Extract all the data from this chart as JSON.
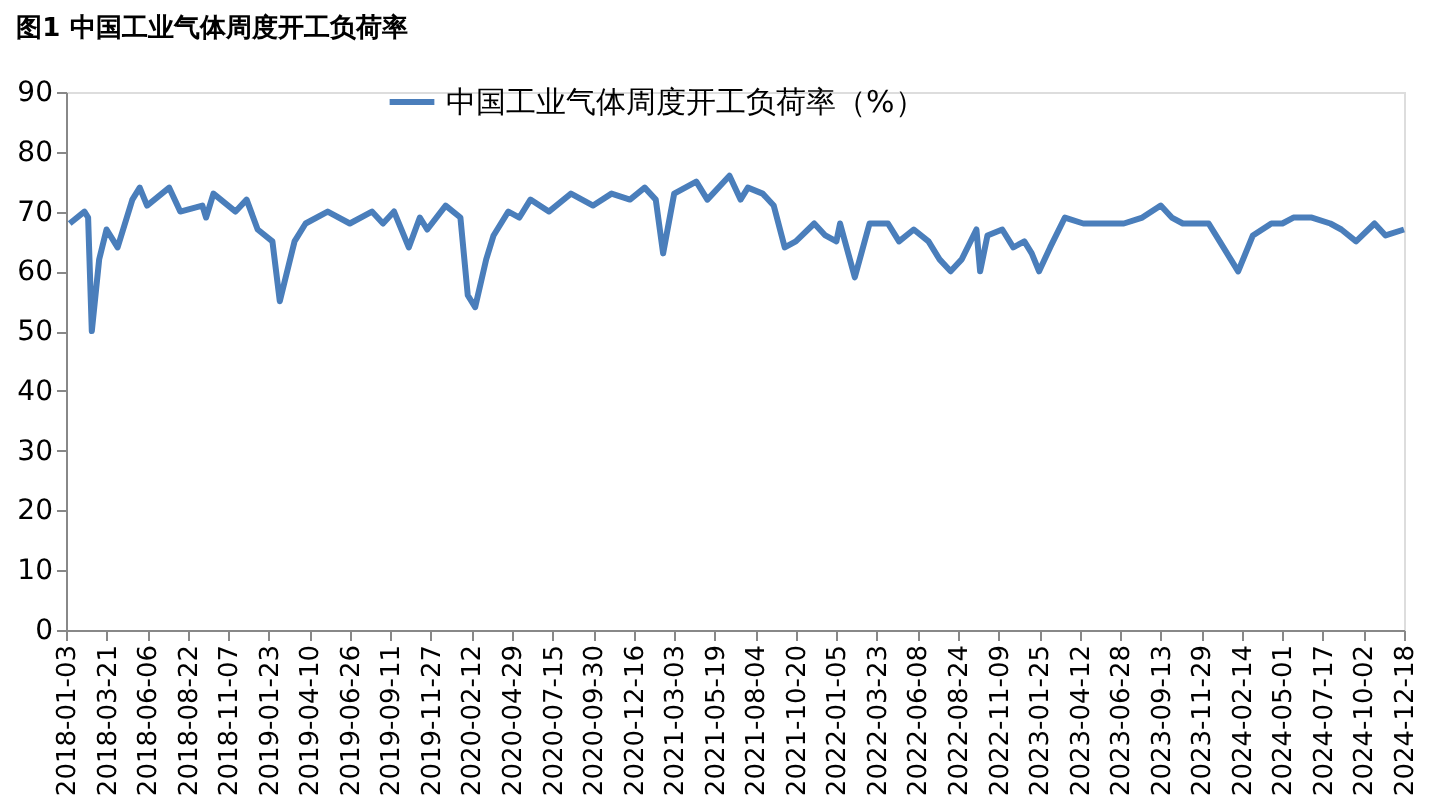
{
  "chart_data": {
    "type": "line",
    "title": "图1  中国工业气体周度开工负荷率",
    "x": [
      "2018-01-10",
      "2018-02-07",
      "2018-02-14",
      "2018-02-21",
      "2018-03-07",
      "2018-03-21",
      "2018-04-11",
      "2018-05-09",
      "2018-05-23",
      "2018-06-06",
      "2018-07-18",
      "2018-08-08",
      "2018-09-19",
      "2018-09-26",
      "2018-10-10",
      "2018-11-21",
      "2018-12-12",
      "2019-01-02",
      "2019-01-30",
      "2019-02-13",
      "2019-03-13",
      "2019-04-03",
      "2019-05-15",
      "2019-06-26",
      "2019-08-07",
      "2019-08-28",
      "2019-09-18",
      "2019-10-16",
      "2019-11-06",
      "2019-11-20",
      "2019-12-25",
      "2020-01-22",
      "2020-02-05",
      "2020-02-19",
      "2020-03-11",
      "2020-03-25",
      "2020-04-22",
      "2020-05-13",
      "2020-06-03",
      "2020-07-08",
      "2020-08-19",
      "2020-09-30",
      "2020-11-04",
      "2020-12-09",
      "2021-01-06",
      "2021-01-27",
      "2021-02-10",
      "2021-03-03",
      "2021-04-14",
      "2021-05-05",
      "2021-06-16",
      "2021-07-07",
      "2021-07-21",
      "2021-08-18",
      "2021-09-08",
      "2021-09-29",
      "2021-10-20",
      "2021-11-24",
      "2021-12-15",
      "2022-01-05",
      "2022-01-12",
      "2022-02-09",
      "2022-03-09",
      "2022-04-13",
      "2022-05-04",
      "2022-06-01",
      "2022-06-29",
      "2022-07-20",
      "2022-08-10",
      "2022-08-31",
      "2022-09-28",
      "2022-10-05",
      "2022-10-19",
      "2022-11-16",
      "2022-12-07",
      "2022-12-28",
      "2023-01-11",
      "2023-01-25",
      "2023-02-15",
      "2023-03-15",
      "2023-04-19",
      "2023-05-31",
      "2023-07-05",
      "2023-08-09",
      "2023-09-13",
      "2023-10-04",
      "2023-10-25",
      "2023-11-22",
      "2023-12-13",
      "2024-01-03",
      "2024-01-24",
      "2024-02-07",
      "2024-03-06",
      "2024-04-10",
      "2024-05-01",
      "2024-05-22",
      "2024-06-26",
      "2024-07-31",
      "2024-08-21",
      "2024-09-18",
      "2024-10-23",
      "2024-11-13",
      "2024-12-18"
    ],
    "series": [
      {
        "name": "中国工业气体周度开工负荷率（%）",
        "color": "#4a7ebb",
        "values": [
          68,
          70,
          69,
          50,
          62,
          67,
          64,
          72,
          74,
          71,
          74,
          70,
          71,
          69,
          73,
          70,
          72,
          67,
          65,
          55,
          65,
          68,
          70,
          68,
          70,
          68,
          70,
          64,
          69,
          67,
          71,
          69,
          56,
          54,
          62,
          66,
          70,
          69,
          72,
          70,
          73,
          71,
          73,
          72,
          74,
          72,
          63,
          73,
          75,
          72,
          76,
          72,
          74,
          73,
          71,
          64,
          65,
          68,
          66,
          65,
          68,
          59,
          68,
          68,
          65,
          67,
          65,
          62,
          60,
          62,
          67,
          60,
          66,
          67,
          64,
          65,
          63,
          60,
          64,
          69,
          68,
          68,
          68,
          69,
          71,
          69,
          68,
          68,
          68,
          65,
          62,
          60,
          66,
          68,
          68,
          69,
          69,
          68,
          67,
          65,
          68,
          66,
          67
        ]
      }
    ],
    "xlim": [
      "2018-01-03",
      "2024-12-18"
    ],
    "xticks": [
      "2018-01-03",
      "2018-03-21",
      "2018-06-06",
      "2018-08-22",
      "2018-11-07",
      "2019-01-23",
      "2019-04-10",
      "2019-06-26",
      "2019-09-11",
      "2019-11-27",
      "2020-02-12",
      "2020-04-29",
      "2020-07-15",
      "2020-09-30",
      "2020-12-16",
      "2021-03-03",
      "2021-05-19",
      "2021-08-04",
      "2021-10-20",
      "2022-01-05",
      "2022-03-23",
      "2022-06-08",
      "2022-08-24",
      "2022-11-09",
      "2023-01-25",
      "2023-04-12",
      "2023-06-28",
      "2023-09-13",
      "2023-11-29",
      "2024-02-14",
      "2024-05-01",
      "2024-07-17",
      "2024-10-02",
      "2024-12-18"
    ],
    "ylim": [
      0,
      90
    ],
    "yticks": [
      0,
      10,
      20,
      30,
      40,
      50,
      60,
      70,
      80,
      90
    ],
    "grid": false,
    "legend": "top",
    "marker": "none",
    "line_style": "solid"
  }
}
